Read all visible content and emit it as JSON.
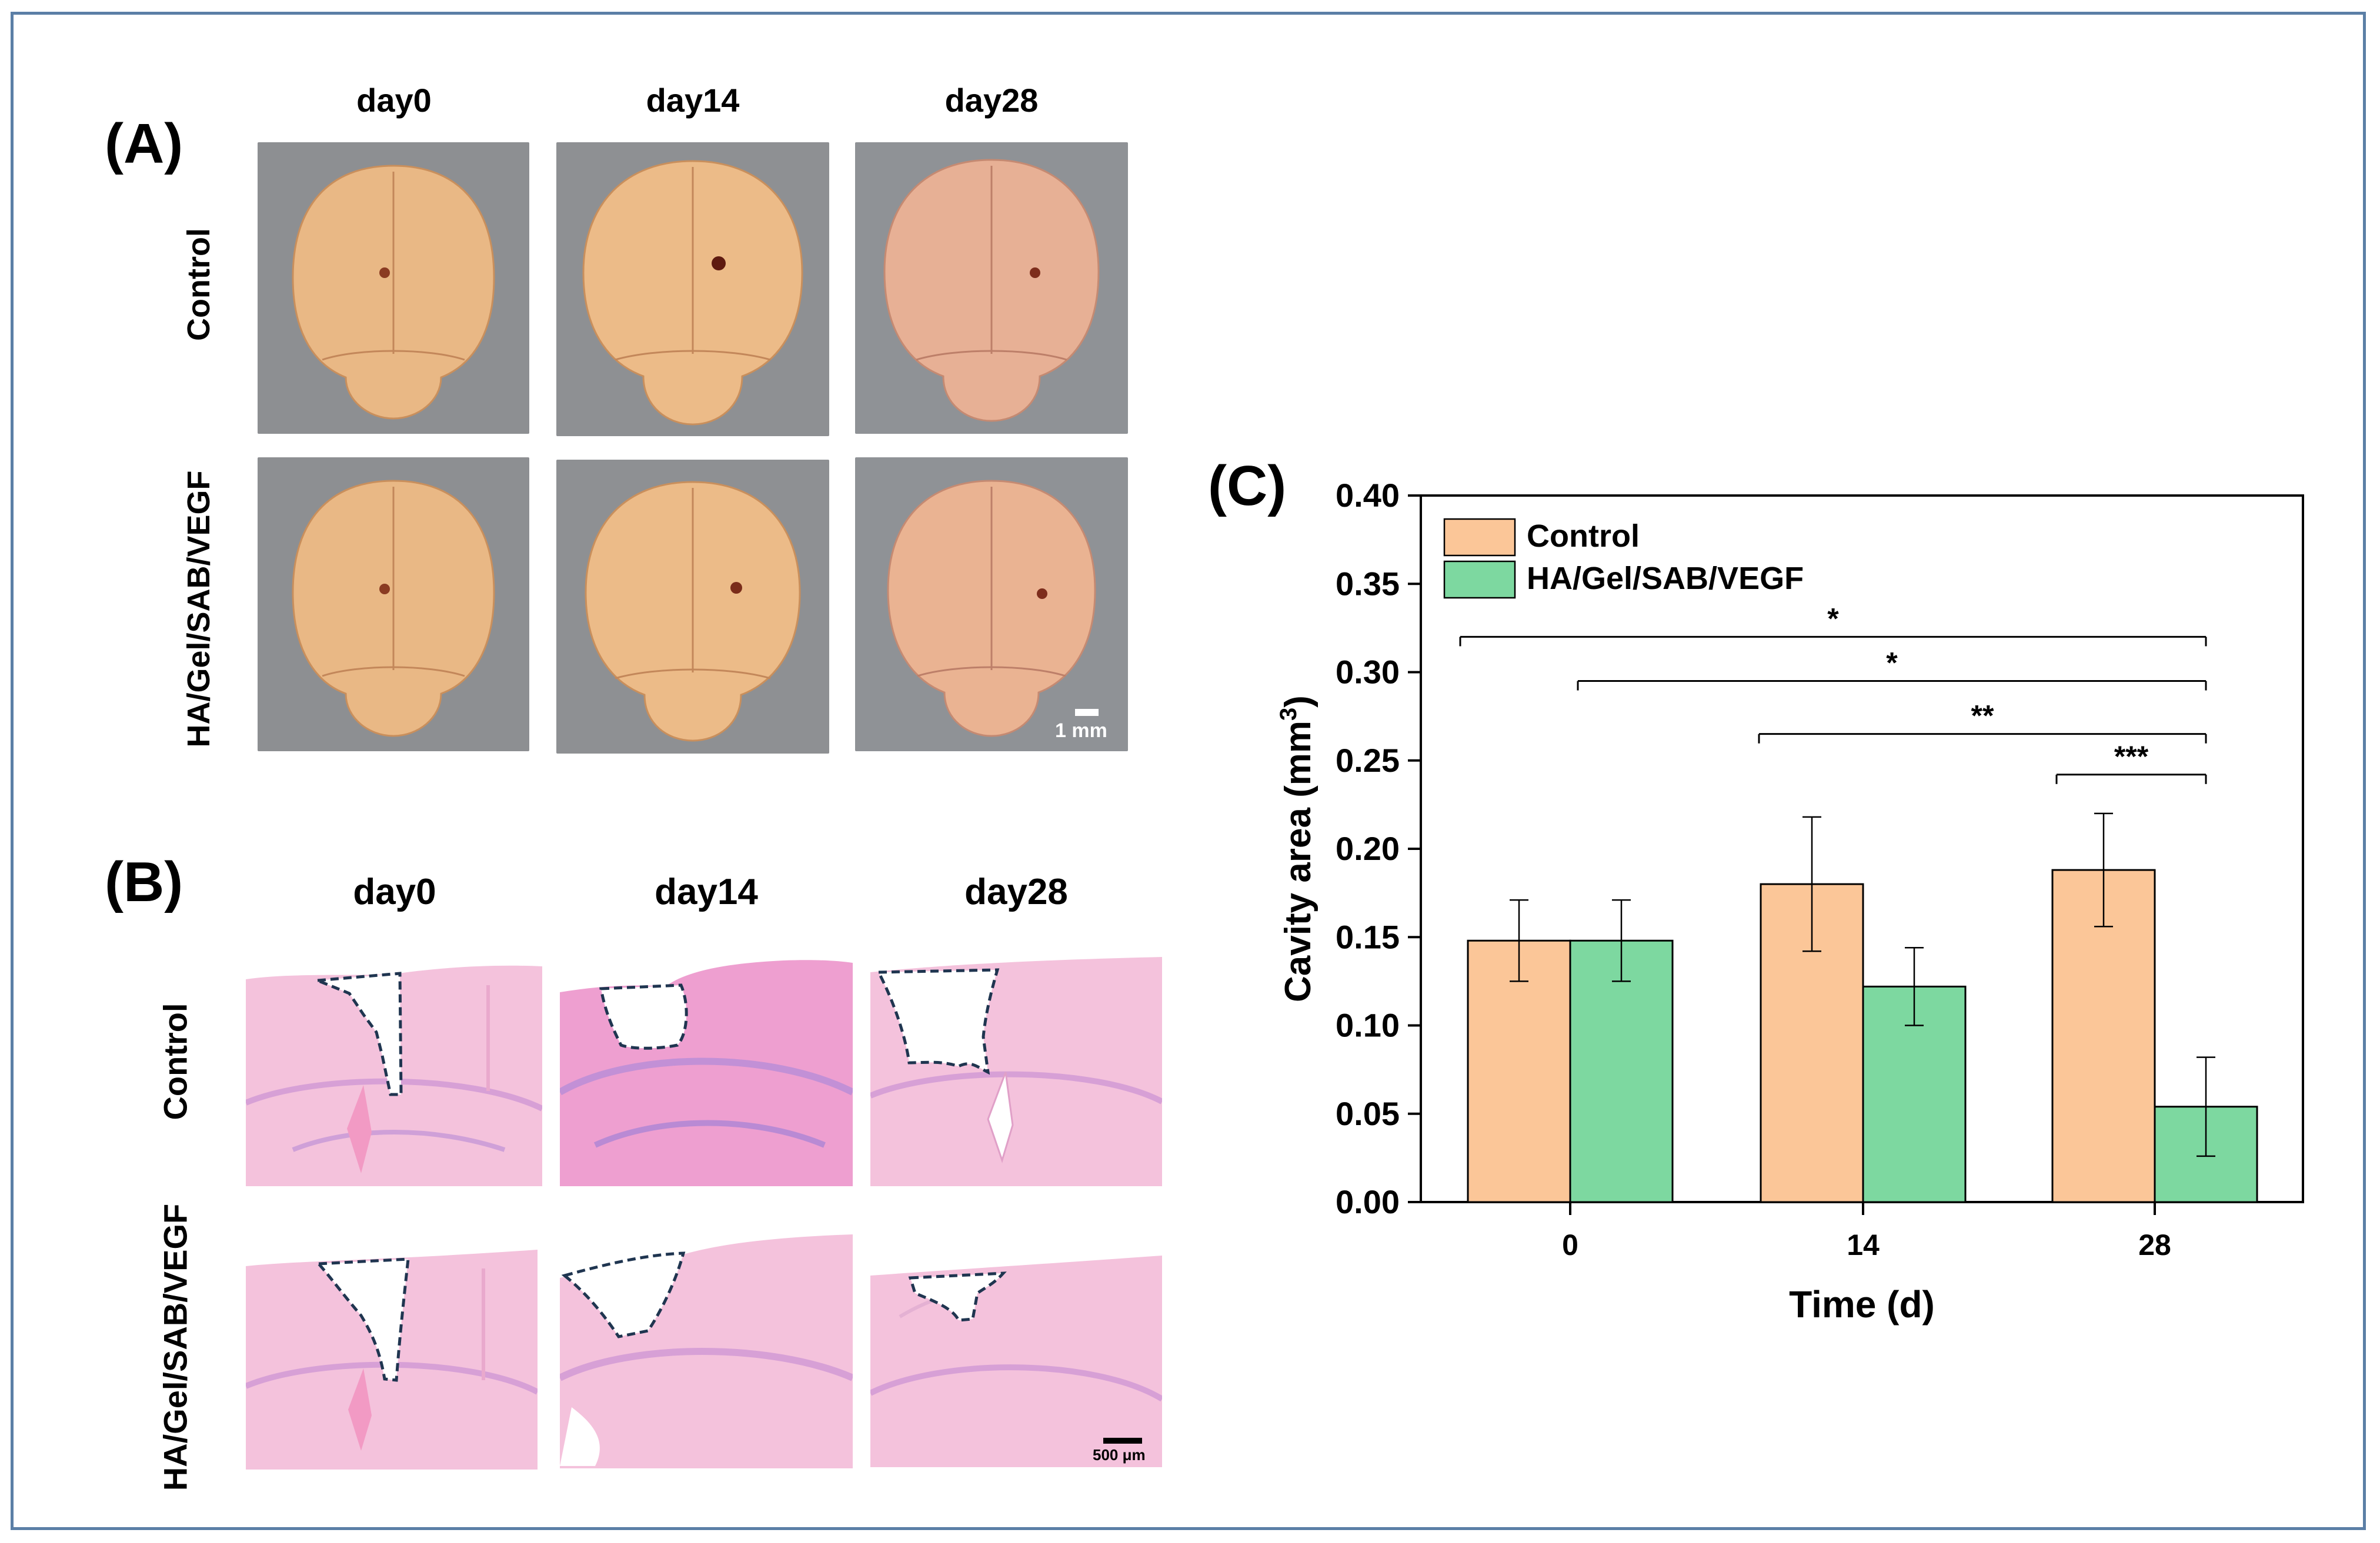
{
  "panels": {
    "A": {
      "label": "(A)",
      "columns": [
        "day0",
        "day14",
        "day28"
      ],
      "rows": [
        "Control",
        "HA/Gel/SAB/VEGF"
      ],
      "scale_bar": "1 mm"
    },
    "B": {
      "label": "(B)",
      "columns": [
        "day0",
        "day14",
        "day28"
      ],
      "rows": [
        "Control",
        "HA/Gel/SAB/VEGF"
      ],
      "scale_bar": "500 μm"
    },
    "C": {
      "label": "(C)"
    }
  },
  "colors": {
    "control": "#fbc698",
    "treatment": "#7dd8a0",
    "frame": "#5b7fa6",
    "outline": "#1f3550"
  },
  "chart_data": {
    "type": "bar",
    "categories": [
      "0",
      "14",
      "28"
    ],
    "series": [
      {
        "name": "Control",
        "values": [
          0.148,
          0.18,
          0.188
        ],
        "errors": [
          0.023,
          0.038,
          0.032
        ]
      },
      {
        "name": "HA/Gel/SAB/VEGF",
        "values": [
          0.148,
          0.122,
          0.054
        ],
        "errors": [
          0.023,
          0.022,
          0.028
        ]
      }
    ],
    "xlabel": "Time (d)",
    "ylabel": "Cavity area (mm",
    "ylabel_sup": "3",
    "ylabel_close": ")",
    "ylim": [
      0,
      0.4
    ],
    "yticks": [
      "0.00",
      "0.05",
      "0.10",
      "0.15",
      "0.20",
      "0.25",
      "0.30",
      "0.35",
      "0.40"
    ],
    "legend_position": "top-left",
    "significance": [
      {
        "label": "*",
        "from": "0",
        "to": "28",
        "y": 0.32
      },
      {
        "label": "*",
        "from": "0",
        "to": "28",
        "y": 0.295
      },
      {
        "label": "**",
        "from": "14",
        "to": "28",
        "y": 0.265
      },
      {
        "label": "***",
        "from": "28",
        "to": "28",
        "y": 0.242
      }
    ]
  }
}
